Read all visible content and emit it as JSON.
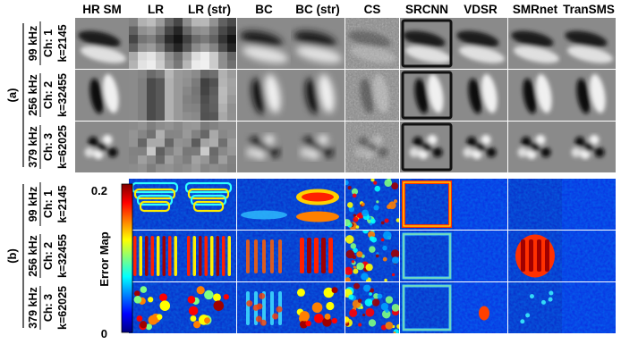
{
  "columns": [
    "HR SM",
    "LR",
    "LR (str)",
    "BC",
    "BC (str)",
    "CS",
    "SRCNN",
    "VDSR",
    "SMRnet",
    "TranSMS"
  ],
  "panels": [
    {
      "label": "(a)",
      "rows": [
        {
          "freq": "99 kHz",
          "line2": "Ch: 1",
          "line3": "k=2145"
        },
        {
          "freq": "256 kHz",
          "line2": "Ch: 2",
          "line3": "k=32455"
        },
        {
          "freq": "379 kHz",
          "line2": "Ch: 3",
          "line3": "k=62025"
        }
      ]
    },
    {
      "label": "(b)",
      "rows": [
        {
          "freq": "99 kHz",
          "line2": "Ch: 1",
          "line3": "k=2145"
        },
        {
          "freq": "256 kHz",
          "line2": "Ch: 2",
          "line3": "k=32455"
        },
        {
          "freq": "379 kHz",
          "line2": "Ch: 3",
          "line3": "k=62025"
        }
      ]
    }
  ],
  "colorbar": {
    "title": "Error Map",
    "max_label": "0.2",
    "min_label": "0",
    "range": [
      0,
      0.2
    ],
    "colormap": "jet"
  }
}
